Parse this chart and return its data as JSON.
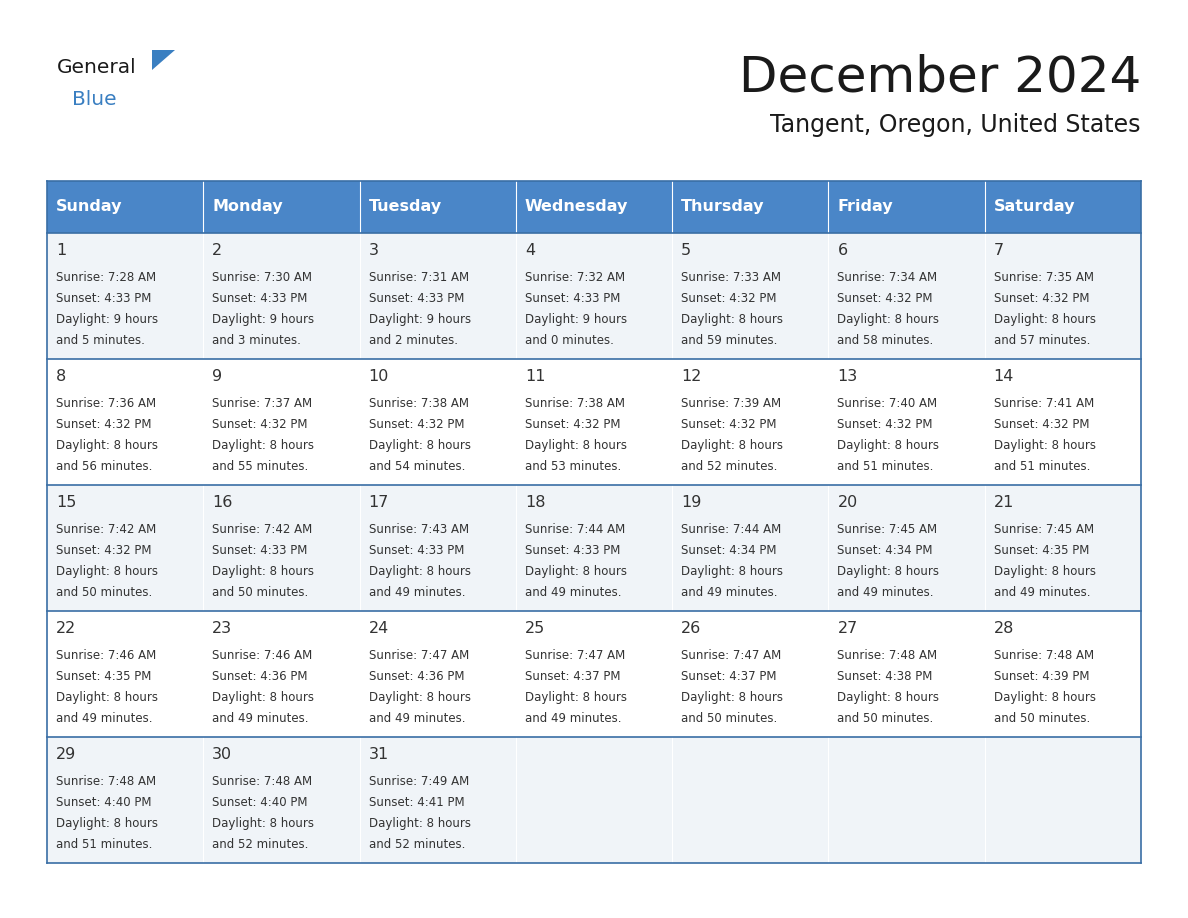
{
  "title": "December 2024",
  "subtitle": "Tangent, Oregon, United States",
  "days_of_week": [
    "Sunday",
    "Monday",
    "Tuesday",
    "Wednesday",
    "Thursday",
    "Friday",
    "Saturday"
  ],
  "header_bg": "#4a86c8",
  "header_text": "#ffffff",
  "cell_bg_odd": "#f0f4f8",
  "cell_bg_even": "#ffffff",
  "border_color": "#3a6ea5",
  "text_color": "#333333",
  "title_color": "#1a1a1a",
  "logo_black": "#1a1a1a",
  "logo_blue": "#3a7fc1",
  "calendar_data": [
    [
      {
        "day": 1,
        "sunrise": "7:28 AM",
        "sunset": "4:33 PM",
        "daylight": "9 hours and 5 minutes."
      },
      {
        "day": 2,
        "sunrise": "7:30 AM",
        "sunset": "4:33 PM",
        "daylight": "9 hours and 3 minutes."
      },
      {
        "day": 3,
        "sunrise": "7:31 AM",
        "sunset": "4:33 PM",
        "daylight": "9 hours and 2 minutes."
      },
      {
        "day": 4,
        "sunrise": "7:32 AM",
        "sunset": "4:33 PM",
        "daylight": "9 hours and 0 minutes."
      },
      {
        "day": 5,
        "sunrise": "7:33 AM",
        "sunset": "4:32 PM",
        "daylight": "8 hours and 59 minutes."
      },
      {
        "day": 6,
        "sunrise": "7:34 AM",
        "sunset": "4:32 PM",
        "daylight": "8 hours and 58 minutes."
      },
      {
        "day": 7,
        "sunrise": "7:35 AM",
        "sunset": "4:32 PM",
        "daylight": "8 hours and 57 minutes."
      }
    ],
    [
      {
        "day": 8,
        "sunrise": "7:36 AM",
        "sunset": "4:32 PM",
        "daylight": "8 hours and 56 minutes."
      },
      {
        "day": 9,
        "sunrise": "7:37 AM",
        "sunset": "4:32 PM",
        "daylight": "8 hours and 55 minutes."
      },
      {
        "day": 10,
        "sunrise": "7:38 AM",
        "sunset": "4:32 PM",
        "daylight": "8 hours and 54 minutes."
      },
      {
        "day": 11,
        "sunrise": "7:38 AM",
        "sunset": "4:32 PM",
        "daylight": "8 hours and 53 minutes."
      },
      {
        "day": 12,
        "sunrise": "7:39 AM",
        "sunset": "4:32 PM",
        "daylight": "8 hours and 52 minutes."
      },
      {
        "day": 13,
        "sunrise": "7:40 AM",
        "sunset": "4:32 PM",
        "daylight": "8 hours and 51 minutes."
      },
      {
        "day": 14,
        "sunrise": "7:41 AM",
        "sunset": "4:32 PM",
        "daylight": "8 hours and 51 minutes."
      }
    ],
    [
      {
        "day": 15,
        "sunrise": "7:42 AM",
        "sunset": "4:32 PM",
        "daylight": "8 hours and 50 minutes."
      },
      {
        "day": 16,
        "sunrise": "7:42 AM",
        "sunset": "4:33 PM",
        "daylight": "8 hours and 50 minutes."
      },
      {
        "day": 17,
        "sunrise": "7:43 AM",
        "sunset": "4:33 PM",
        "daylight": "8 hours and 49 minutes."
      },
      {
        "day": 18,
        "sunrise": "7:44 AM",
        "sunset": "4:33 PM",
        "daylight": "8 hours and 49 minutes."
      },
      {
        "day": 19,
        "sunrise": "7:44 AM",
        "sunset": "4:34 PM",
        "daylight": "8 hours and 49 minutes."
      },
      {
        "day": 20,
        "sunrise": "7:45 AM",
        "sunset": "4:34 PM",
        "daylight": "8 hours and 49 minutes."
      },
      {
        "day": 21,
        "sunrise": "7:45 AM",
        "sunset": "4:35 PM",
        "daylight": "8 hours and 49 minutes."
      }
    ],
    [
      {
        "day": 22,
        "sunrise": "7:46 AM",
        "sunset": "4:35 PM",
        "daylight": "8 hours and 49 minutes."
      },
      {
        "day": 23,
        "sunrise": "7:46 AM",
        "sunset": "4:36 PM",
        "daylight": "8 hours and 49 minutes."
      },
      {
        "day": 24,
        "sunrise": "7:47 AM",
        "sunset": "4:36 PM",
        "daylight": "8 hours and 49 minutes."
      },
      {
        "day": 25,
        "sunrise": "7:47 AM",
        "sunset": "4:37 PM",
        "daylight": "8 hours and 49 minutes."
      },
      {
        "day": 26,
        "sunrise": "7:47 AM",
        "sunset": "4:37 PM",
        "daylight": "8 hours and 50 minutes."
      },
      {
        "day": 27,
        "sunrise": "7:48 AM",
        "sunset": "4:38 PM",
        "daylight": "8 hours and 50 minutes."
      },
      {
        "day": 28,
        "sunrise": "7:48 AM",
        "sunset": "4:39 PM",
        "daylight": "8 hours and 50 minutes."
      }
    ],
    [
      {
        "day": 29,
        "sunrise": "7:48 AM",
        "sunset": "4:40 PM",
        "daylight": "8 hours and 51 minutes."
      },
      {
        "day": 30,
        "sunrise": "7:48 AM",
        "sunset": "4:40 PM",
        "daylight": "8 hours and 52 minutes."
      },
      {
        "day": 31,
        "sunrise": "7:49 AM",
        "sunset": "4:41 PM",
        "daylight": "8 hours and 52 minutes."
      },
      null,
      null,
      null,
      null
    ]
  ]
}
